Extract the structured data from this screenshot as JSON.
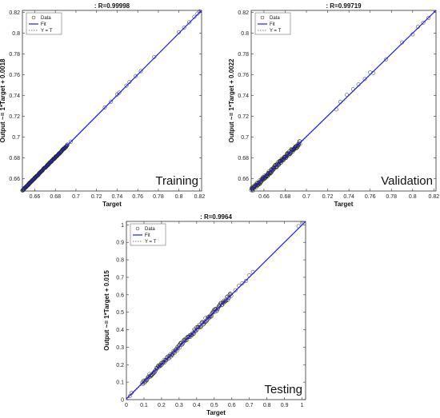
{
  "chart_data": [
    {
      "type": "scatter",
      "title": ": R=0.99998",
      "xlabel": "Target",
      "ylabel": "Output ~= 1*Target + 0.0018",
      "annotation": "Training",
      "xlim": [
        0.648,
        0.822
      ],
      "ylim": [
        0.648,
        0.822
      ],
      "xticks": [
        0.66,
        0.68,
        0.7,
        0.72,
        0.74,
        0.76,
        0.78,
        0.8,
        0.82
      ],
      "yticks": [
        0.66,
        0.68,
        0.7,
        0.72,
        0.74,
        0.76,
        0.78,
        0.8,
        0.82
      ],
      "tick_labels_x": [
        "0.66",
        "0.68",
        "0.7",
        "0.72",
        "0.74",
        "0.76",
        "0.78",
        "0.8",
        "0.82"
      ],
      "tick_labels_y": [
        "0.66",
        "0.68",
        "0.7",
        "0.72",
        "0.74",
        "0.76",
        "0.78",
        "0.8",
        "0.82"
      ],
      "fit": {
        "slope": 1,
        "intercept": 0.0018
      },
      "legend": [
        "Data",
        "Fit",
        "Y = T"
      ],
      "legend_location": "top-left",
      "series": [
        {
          "name": "Data",
          "kind": "points",
          "x_range": [
            0.648,
            0.822
          ],
          "dense_until": 0.692,
          "extra_x": [
            0.695,
            0.728,
            0.734,
            0.74,
            0.742,
            0.749,
            0.752,
            0.758,
            0.763,
            0.776,
            0.8,
            0.805,
            0.81,
            0.815,
            0.818,
            0.82
          ],
          "noise": 0.0006
        },
        {
          "name": "Fit",
          "kind": "line"
        },
        {
          "name": "Y = T",
          "kind": "line"
        }
      ]
    },
    {
      "type": "scatter",
      "title": ": R=0.99719",
      "xlabel": "Target",
      "ylabel": "Output ~= 1*Target + 0.0022",
      "annotation": "Validation",
      "xlim": [
        0.648,
        0.822
      ],
      "ylim": [
        0.648,
        0.822
      ],
      "xticks": [
        0.66,
        0.68,
        0.7,
        0.72,
        0.74,
        0.76,
        0.78,
        0.8,
        0.82
      ],
      "yticks": [
        0.66,
        0.68,
        0.7,
        0.72,
        0.74,
        0.76,
        0.78,
        0.8,
        0.82
      ],
      "tick_labels_x": [
        "0.66",
        "0.68",
        "0.7",
        "0.72",
        "0.74",
        "0.76",
        "0.78",
        "0.8",
        "0.82"
      ],
      "tick_labels_y": [
        "0.66",
        "0.68",
        "0.7",
        "0.72",
        "0.74",
        "0.76",
        "0.78",
        "0.8",
        "0.82"
      ],
      "fit": {
        "slope": 1,
        "intercept": 0.0022
      },
      "legend": [
        "Data",
        "Fit",
        "Y = T"
      ],
      "legend_location": "top-left",
      "series": [
        {
          "name": "Data",
          "kind": "points",
          "x_range": [
            0.648,
            0.822
          ],
          "dense_until": 0.694,
          "extra_x": [
            0.728,
            0.732,
            0.738,
            0.744,
            0.749,
            0.755,
            0.76,
            0.763,
            0.775,
            0.79,
            0.8,
            0.805,
            0.81,
            0.815,
            0.82
          ],
          "noise": 0.002
        },
        {
          "name": "Fit",
          "kind": "line"
        },
        {
          "name": "Y = T",
          "kind": "line"
        }
      ]
    },
    {
      "type": "scatter",
      "title": ": R=0.9964",
      "xlabel": "Target",
      "ylabel": "Output ~= 1*Target + 0.015",
      "annotation": "Testing",
      "xlim": [
        0,
        1.02
      ],
      "ylim": [
        0,
        1.02
      ],
      "xticks": [
        0,
        0.1,
        0.2,
        0.3,
        0.4,
        0.5,
        0.6,
        0.7,
        0.8,
        0.9,
        1
      ],
      "yticks": [
        0,
        0.1,
        0.2,
        0.3,
        0.4,
        0.5,
        0.6,
        0.7,
        0.8,
        0.9,
        1
      ],
      "tick_labels_x": [
        "0",
        "0.1",
        "0.2",
        "0.3",
        "0.4",
        "0.5",
        "0.6",
        "0.7",
        "0.8",
        "0.9",
        "1"
      ],
      "tick_labels_y": [
        "0",
        "0.1",
        "0.2",
        "0.3",
        "0.4",
        "0.5",
        "0.6",
        "0.7",
        "0.8",
        "0.9",
        "1"
      ],
      "fit": {
        "slope": 1,
        "intercept": 0.015
      },
      "legend": [
        "Data",
        "Fit",
        "Y = T"
      ],
      "legend_location": "top-left",
      "series": [
        {
          "name": "Data",
          "kind": "points",
          "x_range": [
            0.02,
            1.0
          ],
          "dense_from": 0.09,
          "dense_until": 0.6,
          "extra_x": [
            0.02,
            0.03,
            0.62,
            0.64,
            0.66,
            0.68,
            0.7,
            0.72,
            0.98,
            1.0
          ],
          "noise": 0.012
        },
        {
          "name": "Fit",
          "kind": "line"
        },
        {
          "name": "Y = T",
          "kind": "line"
        }
      ]
    }
  ]
}
